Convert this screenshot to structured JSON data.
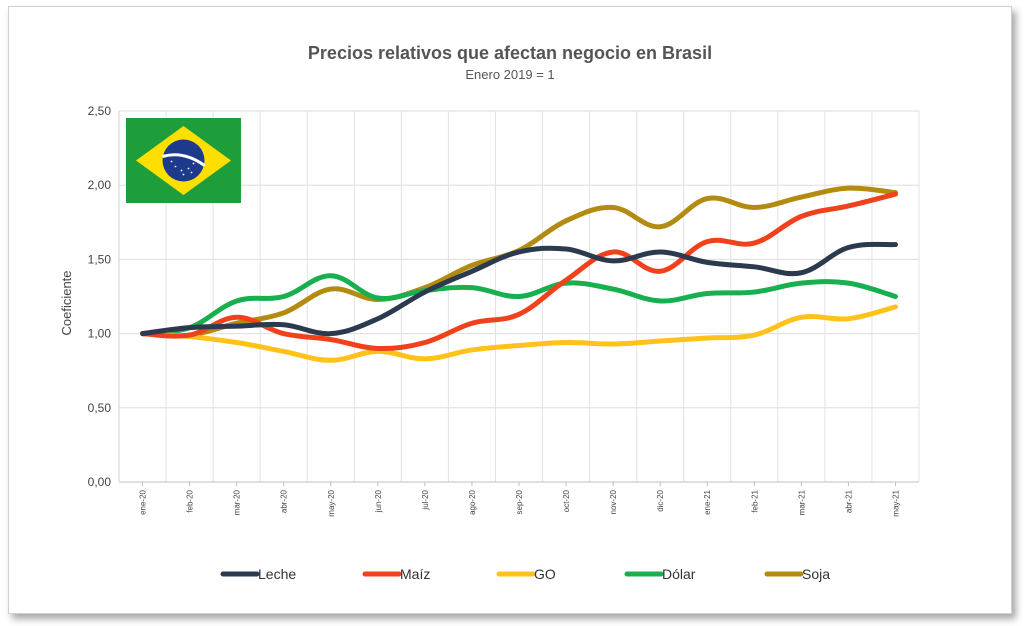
{
  "chart_data": {
    "type": "line",
    "title": "Precios relativos que afectan negocio en Brasil",
    "subtitle": "Enero 2019 = 1",
    "ylabel": "Coeficiente",
    "xlabel": "",
    "ylim": [
      0,
      2.5
    ],
    "yticks": [
      "0,00",
      "0,50",
      "1,00",
      "1,50",
      "2,00",
      "2,50"
    ],
    "grid": true,
    "legend_position": "bottom",
    "categories": [
      "ene-20",
      "feb-20",
      "mar-20",
      "abr-20",
      "may-20",
      "jun-20",
      "jul-20",
      "ago-20",
      "sep-20",
      "oct-20",
      "nov-20",
      "dic-20",
      "ene-21",
      "feb-21",
      "mar-21",
      "abr-21",
      "may-21"
    ],
    "series": [
      {
        "name": "Leche",
        "color": "#2c3a4f",
        "values": [
          1.0,
          1.04,
          1.05,
          1.06,
          1.0,
          1.1,
          1.28,
          1.42,
          1.55,
          1.57,
          1.49,
          1.55,
          1.48,
          1.45,
          1.41,
          1.58,
          1.6
        ]
      },
      {
        "name": "Maíz",
        "color": "#f0401c",
        "values": [
          1.0,
          0.99,
          1.11,
          1.0,
          0.96,
          0.9,
          0.94,
          1.07,
          1.13,
          1.36,
          1.55,
          1.42,
          1.62,
          1.61,
          1.79,
          1.86,
          1.94
        ]
      },
      {
        "name": "GO",
        "color": "#ffc21a",
        "values": [
          1.0,
          0.98,
          0.94,
          0.88,
          0.82,
          0.88,
          0.83,
          0.89,
          0.92,
          0.94,
          0.93,
          0.95,
          0.97,
          0.99,
          1.11,
          1.1,
          1.18
        ]
      },
      {
        "name": "Dólar",
        "color": "#18b04e",
        "values": [
          1.0,
          1.04,
          1.22,
          1.25,
          1.39,
          1.24,
          1.29,
          1.31,
          1.25,
          1.34,
          1.3,
          1.22,
          1.27,
          1.28,
          1.34,
          1.34,
          1.25
        ]
      },
      {
        "name": "Soja",
        "color": "#b38b10",
        "values": [
          1.0,
          0.99,
          1.07,
          1.14,
          1.3,
          1.23,
          1.31,
          1.46,
          1.56,
          1.76,
          1.85,
          1.72,
          1.91,
          1.85,
          1.92,
          1.98,
          1.95
        ]
      }
    ]
  },
  "flag": {
    "country": "Brasil",
    "green": "#1e9e3a",
    "yellow": "#fedf00",
    "blue": "#1d3a8c"
  }
}
